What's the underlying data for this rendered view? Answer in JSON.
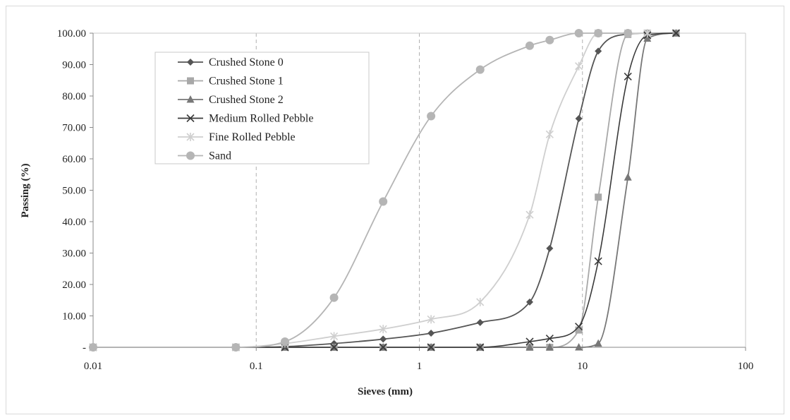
{
  "chart_data": {
    "type": "line",
    "title": "",
    "xlabel": "Sieves (mm)",
    "ylabel": "Passing (%)",
    "x_scale": "log",
    "xlim": [
      0.01,
      100
    ],
    "ylim": [
      0,
      100
    ],
    "x_ticks": [
      0.01,
      0.1,
      1,
      10,
      100
    ],
    "x_tick_labels": [
      "0.01",
      "0.1",
      "1",
      "10",
      "100"
    ],
    "y_ticks": [
      0,
      10,
      20,
      30,
      40,
      50,
      60,
      70,
      80,
      90,
      100
    ],
    "y_tick_labels": [
      "-",
      "10.00",
      "20.00",
      "30.00",
      "40.00",
      "50.00",
      "60.00",
      "70.00",
      "80.00",
      "90.00",
      "100.00"
    ],
    "vertical_gridlines": [
      0.1,
      1,
      10
    ],
    "legend_position": "top-left",
    "series": [
      {
        "name": "Crushed Stone 0",
        "marker": "diamond",
        "color": "#555555",
        "x": [
          0.01,
          0.075,
          0.15,
          0.3,
          0.6,
          1.18,
          2.36,
          4.75,
          6.3,
          9.5,
          12.5,
          19,
          25,
          37.5
        ],
        "y": [
          0,
          0,
          0.2,
          1.2,
          2.6,
          4.5,
          7.9,
          14.4,
          31.5,
          72.8,
          94.3,
          99.7,
          100,
          100
        ]
      },
      {
        "name": "Crushed Stone 1",
        "marker": "square",
        "color": "#a8a8a8",
        "x": [
          0.01,
          0.075,
          0.15,
          0.3,
          0.6,
          1.18,
          2.36,
          4.75,
          6.3,
          9.5,
          12.5,
          19,
          25,
          37.5
        ],
        "y": [
          0,
          0,
          0,
          0,
          0,
          0,
          0,
          0,
          0,
          5.5,
          47.8,
          99.6,
          100,
          100
        ]
      },
      {
        "name": "Crushed Stone 2",
        "marker": "triangle",
        "color": "#777777",
        "x": [
          0.01,
          0.075,
          0.15,
          0.3,
          0.6,
          1.18,
          2.36,
          4.75,
          6.3,
          9.5,
          12.5,
          19,
          25,
          37.5
        ],
        "y": [
          0,
          0,
          0,
          0,
          0,
          0,
          0,
          0,
          0,
          0,
          1.2,
          54.1,
          98.3,
          100
        ]
      },
      {
        "name": "Medium Rolled Pebble",
        "marker": "x",
        "color": "#3a3a3a",
        "x": [
          0.01,
          0.075,
          0.15,
          0.3,
          0.6,
          1.18,
          2.36,
          4.75,
          6.3,
          9.5,
          12.5,
          19,
          25,
          37.5
        ],
        "y": [
          0,
          0,
          0,
          0,
          0,
          0,
          0,
          1.8,
          2.8,
          6.6,
          27.4,
          86.2,
          99.3,
          100
        ]
      },
      {
        "name": "Fine Rolled Pebble",
        "marker": "asterisk",
        "color": "#cfcfcf",
        "x": [
          0.01,
          0.075,
          0.15,
          0.3,
          0.6,
          1.18,
          2.36,
          4.75,
          6.3,
          9.5,
          12.5,
          19,
          25
        ],
        "y": [
          0,
          0,
          1.2,
          3.5,
          5.8,
          8.9,
          14.4,
          42.2,
          67.8,
          89.5,
          100,
          100,
          100
        ]
      },
      {
        "name": "Sand",
        "marker": "circle",
        "color": "#b5b5b5",
        "x": [
          0.01,
          0.075,
          0.15,
          0.3,
          0.6,
          1.18,
          2.36,
          4.75,
          6.3,
          9.5,
          12.5,
          19
        ],
        "y": [
          0,
          0,
          1.8,
          15.8,
          46.4,
          73.6,
          88.4,
          96,
          97.8,
          100,
          100,
          100
        ]
      }
    ]
  }
}
